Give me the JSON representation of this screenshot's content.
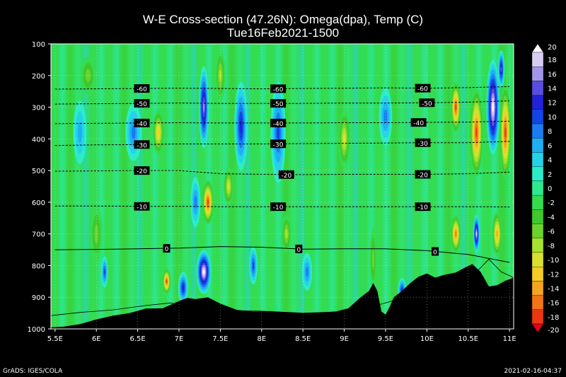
{
  "chart_data": {
    "type": "heatmap",
    "title": "W-E Cross-section (47.26N): Omega(dpa), Temp (C)",
    "subtitle": "Tue16Feb2021-1500",
    "x_ticks": [
      "5.5E",
      "6E",
      "6.5E",
      "7E",
      "7.5E",
      "8E",
      "8.5E",
      "9E",
      "9.5E",
      "10E",
      "10.5E",
      "11E"
    ],
    "x_values": [
      5.5,
      6,
      6.5,
      7,
      7.5,
      8,
      8.5,
      9,
      9.5,
      10,
      10.5,
      11
    ],
    "xlim": [
      5.45,
      11.05
    ],
    "y_ticks": [
      "100",
      "200",
      "300",
      "400",
      "500",
      "600",
      "700",
      "800",
      "900",
      "1000"
    ],
    "y_values": [
      100,
      200,
      300,
      400,
      500,
      600,
      700,
      800,
      900,
      1000
    ],
    "ylim": [
      100,
      1000
    ],
    "colorbar_labels": [
      "20",
      "18",
      "16",
      "14",
      "12",
      "10",
      "8",
      "6",
      "4",
      "2",
      "0",
      "-2",
      "-4",
      "-6",
      "-8",
      "-10",
      "-12",
      "-14",
      "-16",
      "-18",
      "-20"
    ],
    "colorbar_colors": [
      "#ffffff",
      "#d8ccf4",
      "#a296ea",
      "#5a4ee0",
      "#2222d8",
      "#1244e6",
      "#1a7cf0",
      "#20aef2",
      "#26d2e6",
      "#2cecc8",
      "#30e88e",
      "#34dc50",
      "#3ec82e",
      "#6ad42c",
      "#a6e22e",
      "#dae02e",
      "#f4cc26",
      "#f4a41e",
      "#f27416",
      "#ec3810",
      "#e8001a"
    ],
    "isotherms": [
      {
        "label": "-60",
        "p": [
          243,
          242,
          241,
          240,
          241,
          242,
          241,
          240,
          239,
          240,
          238,
          235
        ],
        "labels_x": [
          6.55,
          8.2,
          9.95
        ]
      },
      {
        "label": "-50",
        "p": [
          290,
          289,
          288,
          287,
          288,
          288,
          288,
          287,
          287,
          286,
          284,
          280
        ],
        "labels_x": [
          6.55,
          8.2,
          10.0
        ]
      },
      {
        "label": "-40",
        "p": [
          352,
          351,
          350,
          349,
          350,
          350,
          350,
          349,
          349,
          348,
          347,
          344
        ],
        "labels_x": [
          6.55,
          8.2,
          9.9
        ]
      },
      {
        "label": "-30",
        "p": [
          421,
          419,
          418,
          416,
          416,
          416,
          415,
          414,
          413,
          412,
          412,
          408
        ],
        "labels_x": [
          6.55,
          8.2,
          9.95
        ]
      },
      {
        "label": "-20",
        "p": [
          502,
          501,
          500,
          500,
          510,
          512,
          513,
          512,
          512,
          512,
          510,
          505
        ],
        "labels_x": [
          6.55,
          8.3,
          9.95
        ]
      },
      {
        "label": "-10",
        "p": [
          612,
          612,
          613,
          613,
          614,
          614,
          614,
          614,
          614,
          614,
          614,
          615
        ],
        "labels_x": [
          6.55,
          8.2,
          9.95
        ]
      },
      {
        "label": "0",
        "p": [
          750,
          749,
          747,
          745,
          740,
          742,
          748,
          747,
          747,
          753,
          765,
          790
        ],
        "labels_x": [
          6.85,
          8.45,
          10.1
        ]
      }
    ],
    "terrain_pressure": [
      [
        5.45,
        995
      ],
      [
        5.6,
        993
      ],
      [
        5.8,
        985
      ],
      [
        6.0,
        970
      ],
      [
        6.2,
        958
      ],
      [
        6.4,
        950
      ],
      [
        6.6,
        936
      ],
      [
        6.8,
        935
      ],
      [
        7.0,
        912
      ],
      [
        7.1,
        902
      ],
      [
        7.2,
        906
      ],
      [
        7.35,
        900
      ],
      [
        7.5,
        920
      ],
      [
        7.7,
        940
      ],
      [
        7.9,
        945
      ],
      [
        8.1,
        944
      ],
      [
        8.3,
        948
      ],
      [
        8.5,
        950
      ],
      [
        8.7,
        948
      ],
      [
        8.9,
        945
      ],
      [
        9.05,
        935
      ],
      [
        9.2,
        900
      ],
      [
        9.3,
        880
      ],
      [
        9.35,
        855
      ],
      [
        9.4,
        880
      ],
      [
        9.45,
        945
      ],
      [
        9.5,
        955
      ],
      [
        9.55,
        930
      ],
      [
        9.6,
        900
      ],
      [
        9.7,
        880
      ],
      [
        9.8,
        855
      ],
      [
        9.9,
        835
      ],
      [
        10.0,
        825
      ],
      [
        10.1,
        838
      ],
      [
        10.2,
        830
      ],
      [
        10.35,
        822
      ],
      [
        10.45,
        808
      ],
      [
        10.55,
        795
      ],
      [
        10.65,
        820
      ],
      [
        10.75,
        866
      ],
      [
        10.85,
        862
      ],
      [
        10.95,
        848
      ],
      [
        11.05,
        838
      ]
    ],
    "terrain_line": [
      [
        5.45,
        958
      ],
      [
        5.8,
        948
      ],
      [
        6.2,
        940
      ],
      [
        6.6,
        926
      ],
      [
        6.9,
        918
      ],
      [
        7.1,
        928
      ],
      [
        7.3,
        940
      ],
      [
        7.6,
        942
      ],
      [
        8.0,
        944
      ],
      [
        8.5,
        950
      ],
      [
        9.0,
        946
      ],
      [
        9.3,
        933
      ],
      [
        9.6,
        910
      ],
      [
        10.0,
        860
      ],
      [
        10.4,
        840
      ],
      [
        10.6,
        820
      ],
      [
        10.75,
        780
      ],
      [
        10.9,
        820
      ],
      [
        11.05,
        838
      ]
    ],
    "blobs": [
      {
        "x": 6.45,
        "p": 380,
        "rx": 0.1,
        "rp": 90,
        "v": 8
      },
      {
        "x": 6.75,
        "p": 380,
        "rx": 0.07,
        "rp": 70,
        "v": -12
      },
      {
        "x": 7.3,
        "p": 300,
        "rx": 0.06,
        "rp": 130,
        "v": 16
      },
      {
        "x": 7.2,
        "p": 600,
        "rx": 0.06,
        "rp": 80,
        "v": 8
      },
      {
        "x": 7.35,
        "p": 600,
        "rx": 0.07,
        "rp": 70,
        "v": -18
      },
      {
        "x": 7.3,
        "p": 820,
        "rx": 0.09,
        "rp": 70,
        "v": 20
      },
      {
        "x": 7.05,
        "p": 870,
        "rx": 0.06,
        "rp": 50,
        "v": 12
      },
      {
        "x": 6.85,
        "p": 850,
        "rx": 0.05,
        "rp": 40,
        "v": -18
      },
      {
        "x": 5.8,
        "p": 380,
        "rx": 0.08,
        "rp": 100,
        "v": 6
      },
      {
        "x": 7.75,
        "p": 360,
        "rx": 0.08,
        "rp": 140,
        "v": 12
      },
      {
        "x": 7.6,
        "p": 550,
        "rx": 0.06,
        "rp": 60,
        "v": -10
      },
      {
        "x": 7.9,
        "p": 800,
        "rx": 0.05,
        "rp": 60,
        "v": 10
      },
      {
        "x": 8.2,
        "p": 380,
        "rx": 0.09,
        "rp": 160,
        "v": 10
      },
      {
        "x": 8.3,
        "p": 700,
        "rx": 0.06,
        "rp": 60,
        "v": -8
      },
      {
        "x": 8.55,
        "p": 820,
        "rx": 0.06,
        "rp": 60,
        "v": 8
      },
      {
        "x": 9.0,
        "p": 400,
        "rx": 0.07,
        "rp": 90,
        "v": -10
      },
      {
        "x": 9.5,
        "p": 330,
        "rx": 0.08,
        "rp": 90,
        "v": 8
      },
      {
        "x": 9.35,
        "p": 780,
        "rx": 0.04,
        "rp": 100,
        "v": -6
      },
      {
        "x": 10.35,
        "p": 300,
        "rx": 0.06,
        "rp": 80,
        "v": -18
      },
      {
        "x": 10.35,
        "p": 700,
        "rx": 0.06,
        "rp": 60,
        "v": -16
      },
      {
        "x": 10.6,
        "p": 380,
        "rx": 0.08,
        "rp": 140,
        "v": -18
      },
      {
        "x": 10.8,
        "p": 300,
        "rx": 0.08,
        "rp": 150,
        "v": 20
      },
      {
        "x": 10.85,
        "p": 700,
        "rx": 0.06,
        "rp": 70,
        "v": -14
      },
      {
        "x": 10.95,
        "p": 380,
        "rx": 0.07,
        "rp": 150,
        "v": -18
      },
      {
        "x": 10.9,
        "p": 180,
        "rx": 0.04,
        "rp": 60,
        "v": 14
      },
      {
        "x": 10.6,
        "p": 700,
        "rx": 0.04,
        "rp": 60,
        "v": 18
      },
      {
        "x": 9.7,
        "p": 880,
        "rx": 0.05,
        "rp": 40,
        "v": 12
      },
      {
        "x": 6.0,
        "p": 700,
        "rx": 0.07,
        "rp": 90,
        "v": -6
      },
      {
        "x": 6.1,
        "p": 820,
        "rx": 0.04,
        "rp": 50,
        "v": 10
      },
      {
        "x": 5.9,
        "p": 200,
        "rx": 0.09,
        "rp": 60,
        "v": -6
      },
      {
        "x": 7.5,
        "p": 200,
        "rx": 0.06,
        "rp": 80,
        "v": -8
      }
    ]
  },
  "footer": {
    "left": "GrADS: IGES/COLA",
    "right": "2021-02-16-04:37"
  }
}
